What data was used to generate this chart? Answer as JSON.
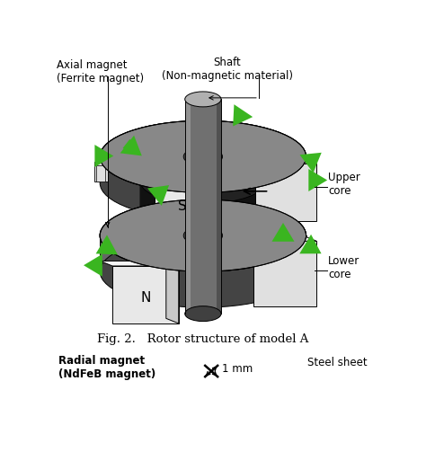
{
  "title": "Fig. 2.   Rotor structure of model A",
  "label_axial_magnet": "Axial magnet\n(Ferrite magnet)",
  "label_shaft": "Shaft\n(Non-magnetic material)",
  "label_upper_core": "Upper\ncore",
  "label_lower_core": "Lower\ncore",
  "label_S": "S",
  "label_N": "N",
  "label_radial_magnet": "Radial magnet\n(NdFeB magnet)",
  "label_scale": "1 mm",
  "label_steel_sheet": "Steel sheet",
  "bg_color": "#ffffff",
  "shaft_body": "#707070",
  "shaft_top": "#aaaaaa",
  "shaft_dark": "#444444",
  "core_top": "#888888",
  "core_side": "#666666",
  "core_dark_side": "#444444",
  "axial_magnet_color": "#1a1a1a",
  "axial_magnet_top": "#333333",
  "magnet_face": "#e8e8e8",
  "magnet_side": "#c0c0c0",
  "magnet_top_face": "#f2f2f2",
  "green_arrow": "#3ab520",
  "black": "#000000"
}
